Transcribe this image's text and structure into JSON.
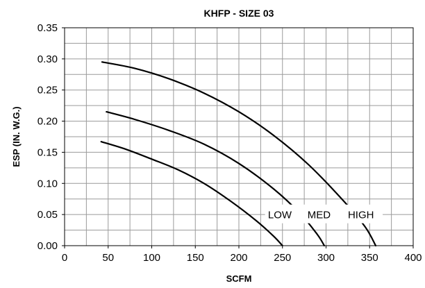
{
  "chart_data": {
    "type": "line",
    "title": "KHFP - SIZE 03",
    "xlabel": "SCFM",
    "ylabel": "ESP (IN. W.G.)",
    "xlim": [
      0,
      400
    ],
    "ylim": [
      0,
      0.35
    ],
    "x_ticks": [
      "0",
      "50",
      "100",
      "150",
      "200",
      "250",
      "300",
      "350",
      "400"
    ],
    "y_ticks": [
      "0.00",
      "0.05",
      "0.10",
      "0.15",
      "0.20",
      "0.25",
      "0.30",
      "0.35"
    ],
    "grid": true,
    "grid_x_step": 25,
    "grid_y_step": 0.025,
    "series": [
      {
        "name": "LOW",
        "color": "#000000",
        "points": [
          [
            42,
            0.167
          ],
          [
            70,
            0.155
          ],
          [
            100,
            0.139
          ],
          [
            130,
            0.122
          ],
          [
            160,
            0.1
          ],
          [
            190,
            0.072
          ],
          [
            220,
            0.04
          ],
          [
            240,
            0.015
          ],
          [
            250,
            0.0
          ]
        ]
      },
      {
        "name": "MED",
        "color": "#000000",
        "points": [
          [
            48,
            0.215
          ],
          [
            80,
            0.203
          ],
          [
            120,
            0.185
          ],
          [
            160,
            0.163
          ],
          [
            200,
            0.132
          ],
          [
            240,
            0.091
          ],
          [
            270,
            0.052
          ],
          [
            290,
            0.018
          ],
          [
            298,
            0.0
          ]
        ]
      },
      {
        "name": "HIGH",
        "color": "#000000",
        "points": [
          [
            43,
            0.295
          ],
          [
            80,
            0.285
          ],
          [
            120,
            0.268
          ],
          [
            160,
            0.245
          ],
          [
            200,
            0.215
          ],
          [
            240,
            0.177
          ],
          [
            280,
            0.13
          ],
          [
            320,
            0.072
          ],
          [
            345,
            0.03
          ],
          [
            357,
            0.0
          ]
        ]
      }
    ]
  }
}
